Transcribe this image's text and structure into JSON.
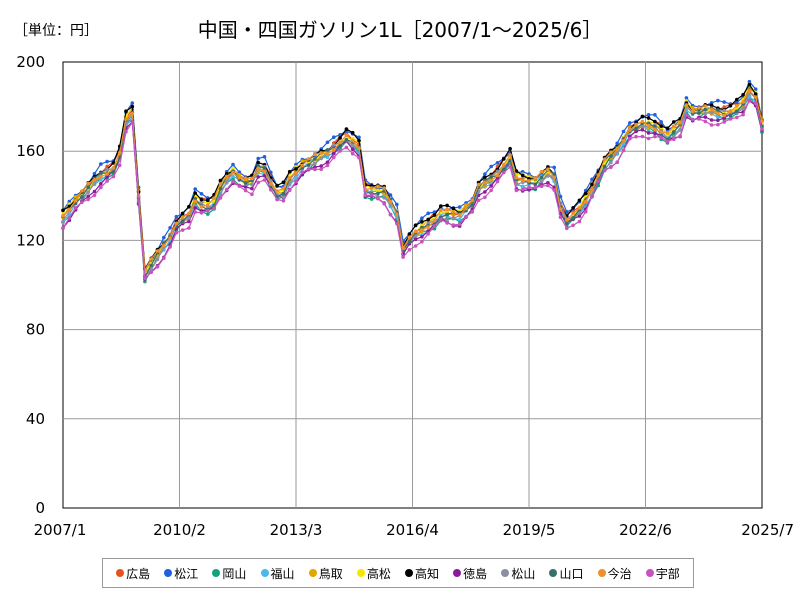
{
  "header": {
    "unit_label": "［単位：円］",
    "title": "中国・四国ガソリン1L［2007/1～2025/6］"
  },
  "chart_data": {
    "type": "line",
    "title": "中国・四国ガソリン1L［2007/1～2025/6］",
    "unit": "［単位：円］",
    "xlabel": "",
    "ylabel": "",
    "ylim": [
      0,
      200
    ],
    "yticks": [
      0,
      40,
      80,
      120,
      160,
      200
    ],
    "xticks": [
      "2007/1",
      "2010/2",
      "2013/3",
      "2016/4",
      "2019/5",
      "2022/6",
      "2025/7"
    ],
    "x_start": 2007.0,
    "x_end": 2025.5,
    "grid": true,
    "base_points": [
      [
        2007.0,
        130
      ],
      [
        2007.33,
        137
      ],
      [
        2007.67,
        143
      ],
      [
        2008.0,
        149
      ],
      [
        2008.33,
        152
      ],
      [
        2008.5,
        158
      ],
      [
        2008.67,
        174
      ],
      [
        2008.75,
        184
      ],
      [
        2008.92,
        170
      ],
      [
        2009.0,
        140
      ],
      [
        2009.08,
        108
      ],
      [
        2009.17,
        105
      ],
      [
        2009.5,
        113
      ],
      [
        2009.83,
        121
      ],
      [
        2010.0,
        127
      ],
      [
        2010.33,
        131
      ],
      [
        2010.5,
        138
      ],
      [
        2010.75,
        135
      ],
      [
        2011.0,
        137
      ],
      [
        2011.25,
        146
      ],
      [
        2011.5,
        150
      ],
      [
        2011.75,
        146
      ],
      [
        2012.0,
        146
      ],
      [
        2012.25,
        155
      ],
      [
        2012.5,
        146
      ],
      [
        2012.75,
        139
      ],
      [
        2013.0,
        147
      ],
      [
        2013.33,
        153
      ],
      [
        2013.67,
        156
      ],
      [
        2014.0,
        159
      ],
      [
        2014.5,
        166
      ],
      [
        2014.83,
        162
      ],
      [
        2015.0,
        143
      ],
      [
        2015.5,
        141
      ],
      [
        2015.83,
        132
      ],
      [
        2016.0,
        116
      ],
      [
        2016.25,
        122
      ],
      [
        2016.5,
        125
      ],
      [
        2016.83,
        129
      ],
      [
        2017.0,
        132
      ],
      [
        2017.5,
        131
      ],
      [
        2017.83,
        136
      ],
      [
        2018.0,
        143
      ],
      [
        2018.5,
        150
      ],
      [
        2018.83,
        157
      ],
      [
        2019.0,
        147
      ],
      [
        2019.5,
        146
      ],
      [
        2019.83,
        150
      ],
      [
        2020.0,
        148
      ],
      [
        2020.25,
        128
      ],
      [
        2020.5,
        131
      ],
      [
        2020.75,
        135
      ],
      [
        2021.0,
        143
      ],
      [
        2021.33,
        154
      ],
      [
        2021.67,
        160
      ],
      [
        2022.0,
        169
      ],
      [
        2022.33,
        172
      ],
      [
        2022.67,
        171
      ],
      [
        2023.0,
        167
      ],
      [
        2023.33,
        171
      ],
      [
        2023.5,
        180
      ],
      [
        2023.67,
        177
      ],
      [
        2024.0,
        178
      ],
      [
        2024.5,
        177
      ],
      [
        2024.75,
        178
      ],
      [
        2025.0,
        181
      ],
      [
        2025.25,
        190
      ],
      [
        2025.42,
        178
      ],
      [
        2025.5,
        172
      ]
    ],
    "series": [
      {
        "name": "広島",
        "color": "#e8501e",
        "offset": 1.5
      },
      {
        "name": "松江",
        "color": "#1f5fe0",
        "offset": 3.5
      },
      {
        "name": "岡山",
        "color": "#12a37a",
        "offset": -2
      },
      {
        "name": "福山",
        "color": "#4ab8e8",
        "offset": -1
      },
      {
        "name": "鳥取",
        "color": "#e0a800",
        "offset": 0.5
      },
      {
        "name": "高松",
        "color": "#f4e800",
        "offset": 1
      },
      {
        "name": "高知",
        "color": "#000000",
        "offset": 2.5
      },
      {
        "name": "徳島",
        "color": "#8a1c9c",
        "offset": -3
      },
      {
        "name": "松山",
        "color": "#8a8fa6",
        "offset": -0.5
      },
      {
        "name": "山口",
        "color": "#3a6e6a",
        "offset": 0
      },
      {
        "name": "今治",
        "color": "#f0902a",
        "offset": 0.8
      },
      {
        "name": "宇部",
        "color": "#c853c0",
        "offset": -4
      }
    ]
  }
}
